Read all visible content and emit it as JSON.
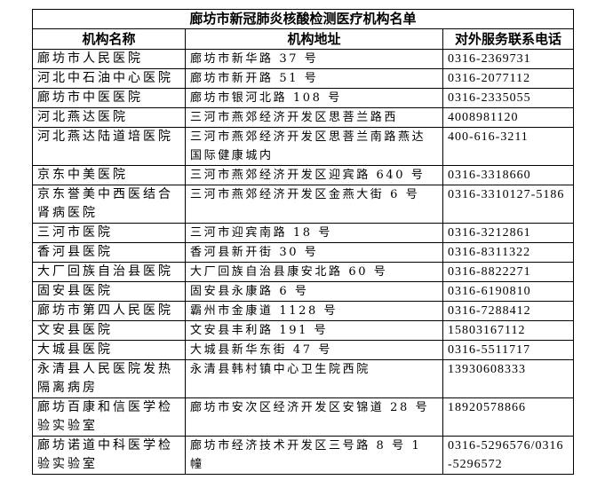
{
  "title": "廊坊市新冠肺炎核酸检测医疗机构名单",
  "columns": [
    "机构名称",
    "机构地址",
    "对外服务联系电话"
  ],
  "rows": [
    [
      "廊坊市人民医院",
      "廊坊市新华路 37 号",
      "0316-2369731"
    ],
    [
      "河北中石油中心医院",
      "廊坊市新开路 51 号",
      "0316-2077112"
    ],
    [
      "廊坊市中医医院",
      "廊坊市银河北路 108 号",
      "0316-2335055"
    ],
    [
      "河北燕达医院",
      "三河市燕郊经济开发区思菩兰路西",
      "4008981120"
    ],
    [
      "河北燕达陆道培医院",
      "三河市燕郊经济开发区思菩兰南路燕达国际健康城内",
      "400-616-3211"
    ],
    [
      "京东中美医院",
      "三河市燕郊经济开发区迎宾路 640 号",
      "0316-3318660"
    ],
    [
      "京东誉美中西医结合肾病医院",
      "三河市燕郊经济开发区金燕大街 6 号",
      "0316-3310127-5186"
    ],
    [
      "三河市医院",
      "三河市迎宾南路 18 号",
      "0316-3212861"
    ],
    [
      "香河县医院",
      "香河县新开街 30 号",
      "0316-8311322"
    ],
    [
      "大厂回族自治县医院",
      "大厂回族自治县康安北路 60 号",
      "0316-8822271"
    ],
    [
      "固安县医院",
      "固安县永康路 6 号",
      "0316-6190810"
    ],
    [
      "廊坊市第四人民医院",
      "霸州市金康道 1128 号",
      "0316-7288412"
    ],
    [
      "文安县医院",
      "文安县丰利路 191 号",
      "15803167112"
    ],
    [
      "大城县医院",
      "大城县新华东街 47 号",
      "0316-5511717"
    ],
    [
      "永清县人民医院发热隔离病房",
      "永清县韩村镇中心卫生院西院",
      "13930608333"
    ],
    [
      "廊坊百康和信医学检验实验室",
      "廊坊市安次区经济开发区安锦道 28 号",
      "18920578866"
    ],
    [
      "廊坊诺道中科医学检验实验室",
      "廊坊市经济技术开发区三号路 8 号 1 幢",
      "0316-5296576/0316-5296572"
    ]
  ]
}
